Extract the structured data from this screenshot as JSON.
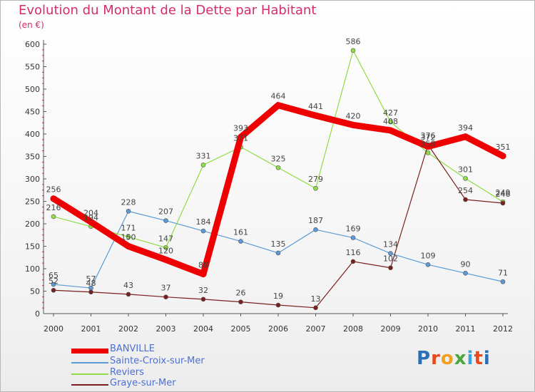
{
  "title": "Evolution du Montant de la Dette par Habitant",
  "subtitle": "(en €)",
  "logo": "Proxiti",
  "chart_data": {
    "type": "line",
    "title": "Evolution du Montant de la Dette par Habitant",
    "subtitle": "(en €)",
    "x": [
      "2000",
      "2001",
      "2002",
      "2003",
      "2004",
      "2005",
      "2006",
      "2007",
      "2008",
      "2009",
      "2010",
      "2011",
      "2012"
    ],
    "ylim": [
      0,
      600
    ],
    "yticks": [
      0,
      50,
      100,
      150,
      200,
      250,
      300,
      350,
      400,
      450,
      500,
      550,
      600
    ],
    "grid": false,
    "legend_position": "bottom-left",
    "series": [
      {
        "name": "BANVILLE",
        "color": "#ee0000",
        "values": [
          256,
          204,
          150,
          120,
          88,
          393,
          464,
          441,
          420,
          408,
          372,
          394,
          351
        ]
      },
      {
        "name": "Sainte-Croix-sur-Mer",
        "color": "#5b9bd5",
        "values": [
          65,
          57,
          228,
          207,
          184,
          161,
          135,
          187,
          169,
          134,
          109,
          90,
          71
        ]
      },
      {
        "name": "Reviers",
        "color": "#8fdc45",
        "values": [
          216,
          194,
          171,
          147,
          331,
          371,
          325,
          279,
          586,
          427,
          358,
          301,
          249
        ]
      },
      {
        "name": "Graye-sur-Mer",
        "color": "#7a1f1f",
        "values": [
          52,
          48,
          43,
          37,
          32,
          26,
          19,
          13,
          116,
          102,
          376,
          254,
          246
        ]
      }
    ],
    "data_labels": [
      [
        "256",
        "204",
        "150",
        "120",
        "88",
        "393",
        "464",
        "441",
        "420",
        "408",
        "372",
        "394",
        "351"
      ],
      [
        "65",
        "57",
        "228",
        "207",
        "184",
        "161",
        "135",
        "187",
        "169",
        "134",
        "109",
        "90",
        "71"
      ],
      [
        "216",
        "194",
        "171",
        "147",
        "331",
        "371",
        "325",
        "279",
        "586",
        "427",
        "358",
        "301",
        "249"
      ],
      [
        "52",
        "48",
        "43",
        "37",
        "32",
        "26",
        "19",
        "13",
        "116",
        "102",
        "376",
        "254",
        "246"
      ]
    ]
  }
}
